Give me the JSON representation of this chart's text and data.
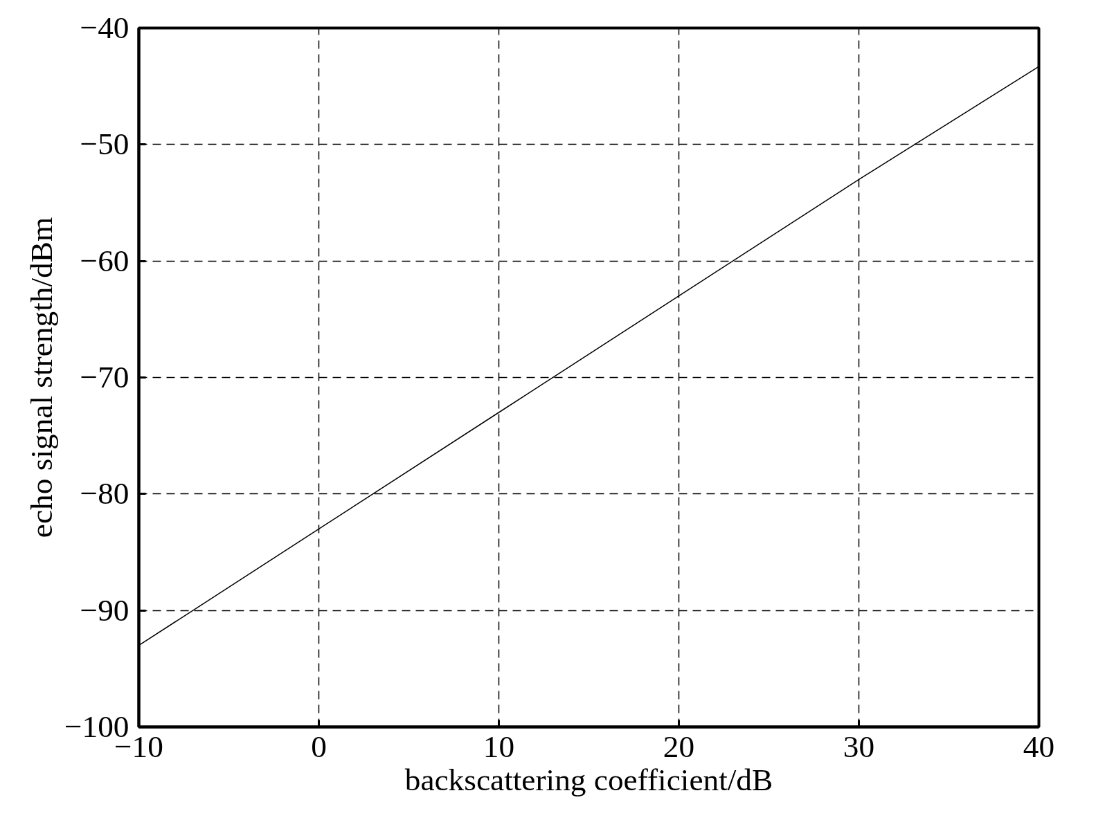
{
  "chart_data": {
    "type": "line",
    "xlabel": "backscattering coefficient/dB",
    "ylabel": "echo signal strength/dBm",
    "x": [
      -10,
      0,
      10,
      20,
      30,
      40
    ],
    "series": [
      {
        "color": "#000000",
        "values": [
          -93,
          -83,
          -73,
          -63,
          -53,
          -43.3
        ]
      }
    ],
    "xlim": [
      -10,
      40
    ],
    "ylim": [
      -100,
      -40
    ],
    "xticks": [
      {
        "value": -10,
        "label": "−10"
      },
      0,
      10,
      20,
      30,
      40
    ],
    "yticks": [
      {
        "value": -100,
        "label": "−100"
      },
      {
        "value": -90,
        "label": "−90"
      },
      {
        "value": -80,
        "label": "−80"
      },
      {
        "value": -70,
        "label": "−70"
      },
      {
        "value": -60,
        "label": "−60"
      },
      {
        "value": -50,
        "label": "−50"
      },
      {
        "value": -40,
        "label": "−40"
      }
    ],
    "grid": true,
    "marker": "none",
    "line_style": "solid"
  }
}
